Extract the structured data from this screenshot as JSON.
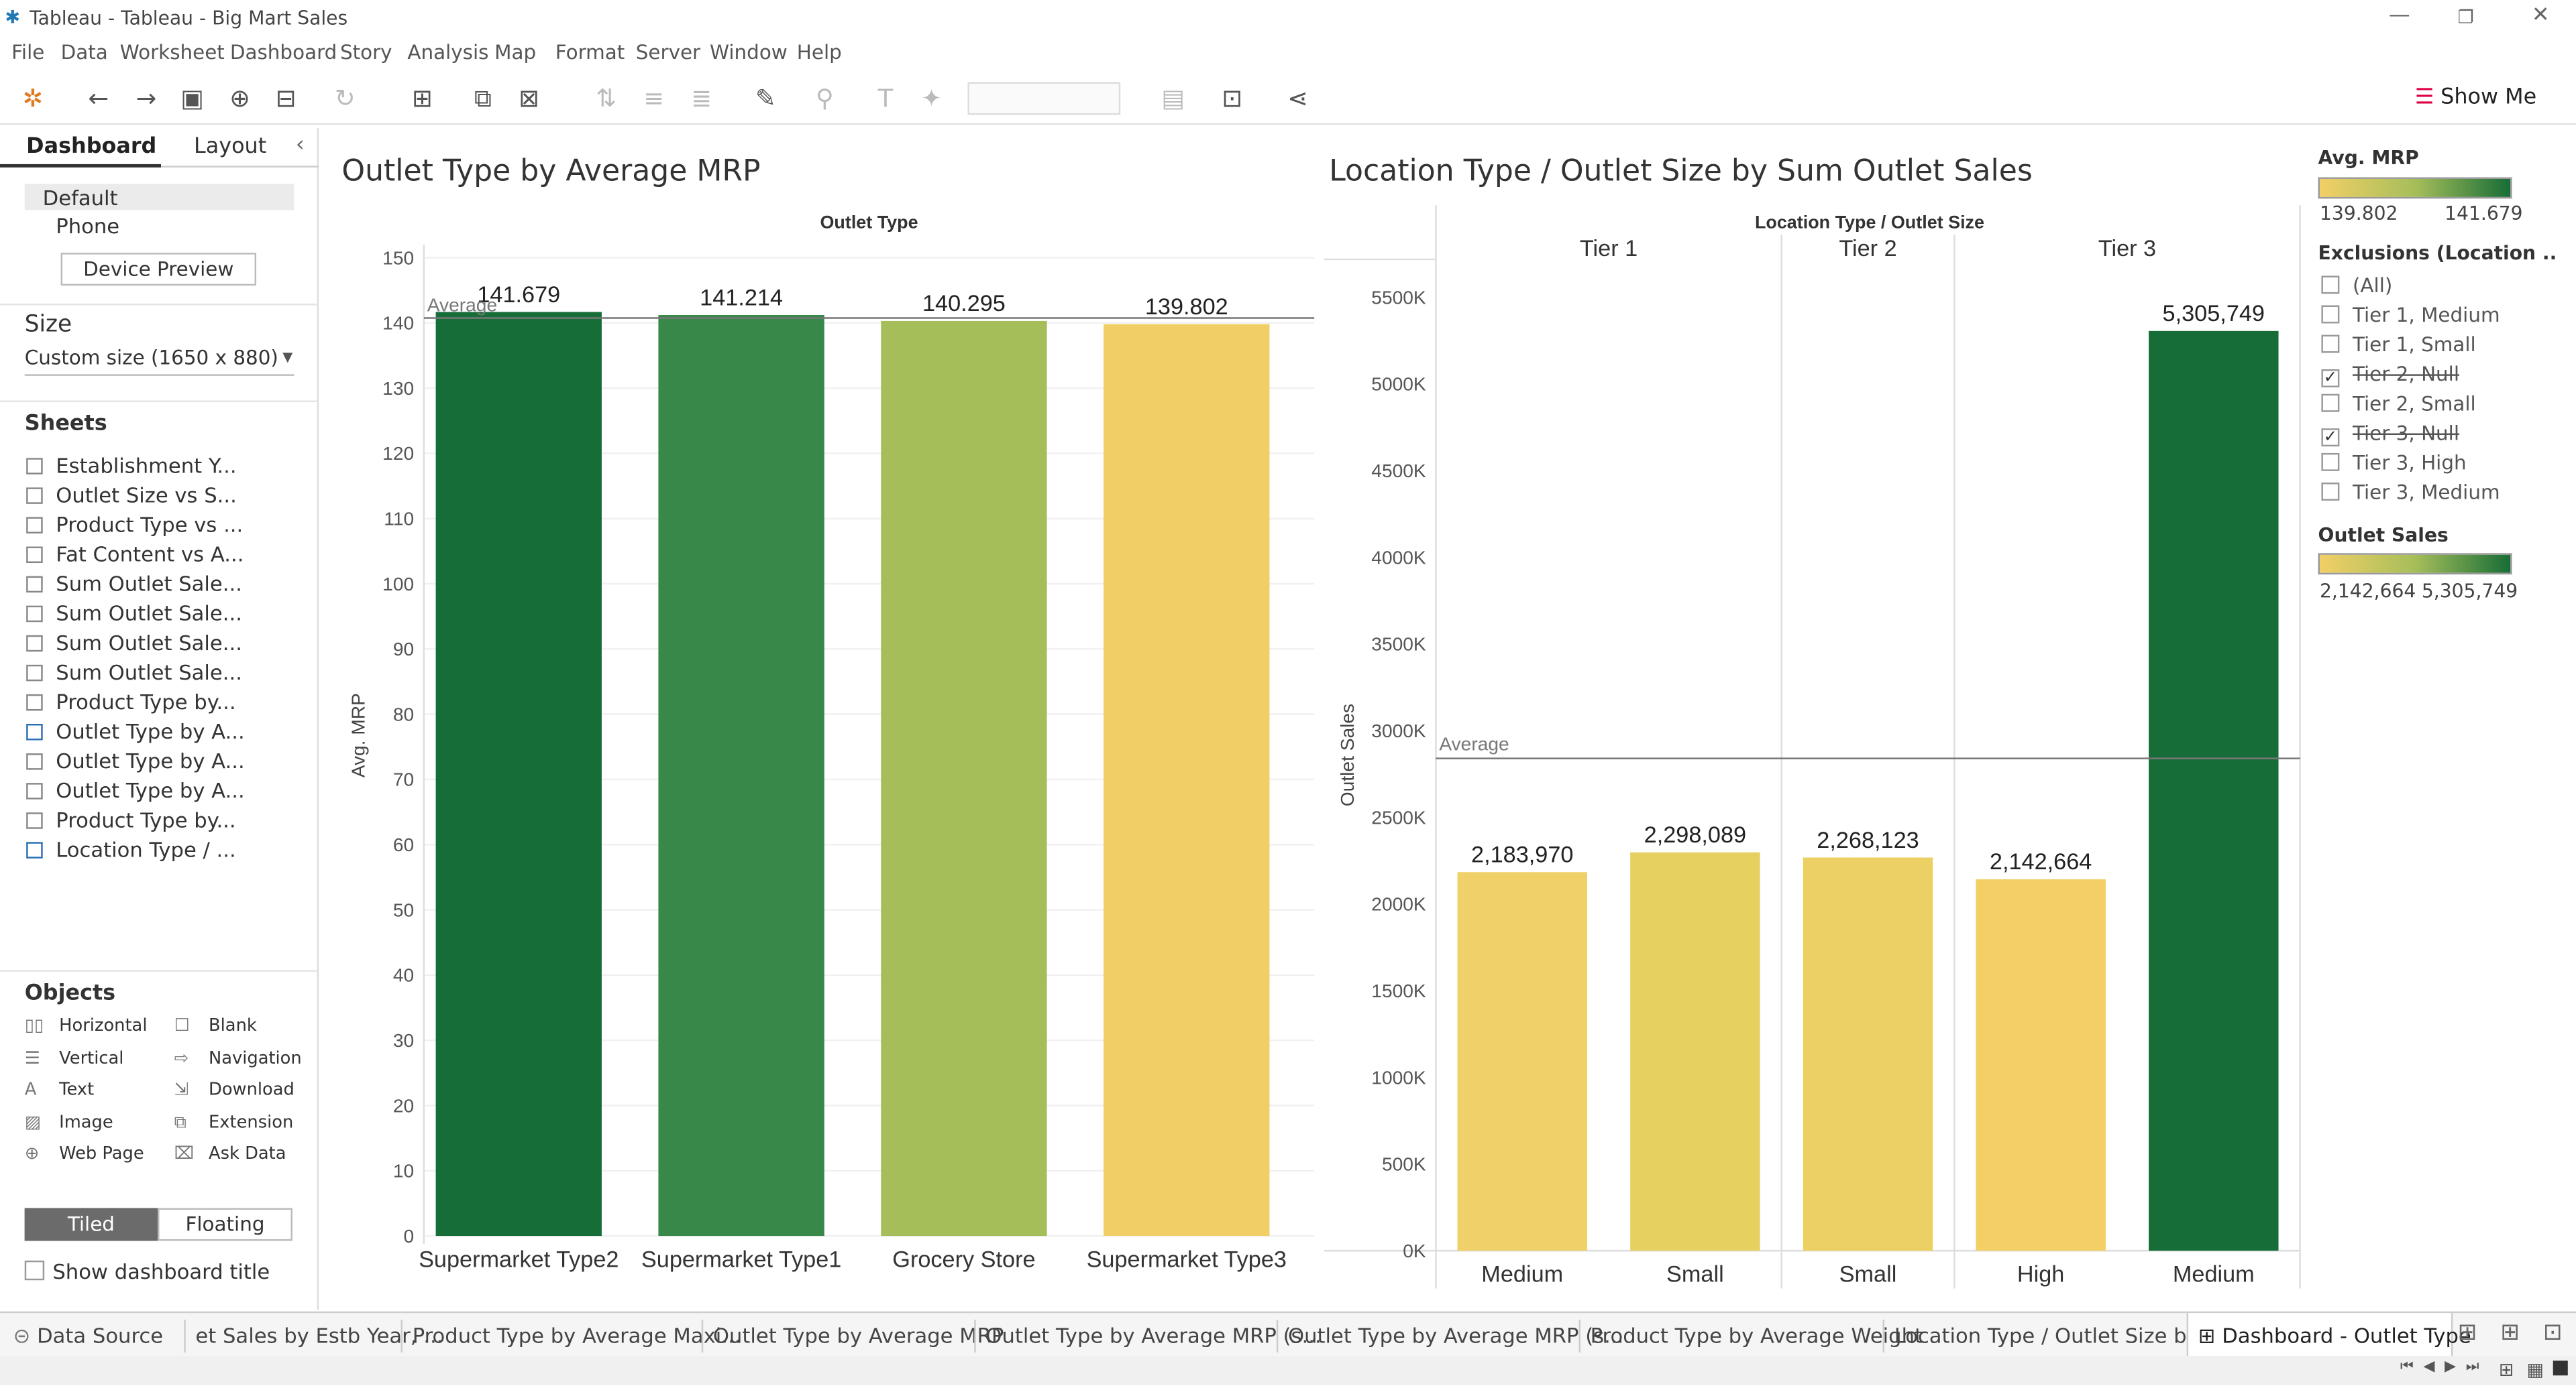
{
  "window": {
    "title": "Tableau - Tableau - Big Mart Sales"
  },
  "menu": [
    "File",
    "Data",
    "Worksheet",
    "Dashboard",
    "Story",
    "Analysis",
    "Map",
    "Format",
    "Server",
    "Window",
    "Help"
  ],
  "toolbar": {
    "show_me": "Show Me"
  },
  "left": {
    "tab_dashboard": "Dashboard",
    "tab_layout": "Layout",
    "device_default": "Default",
    "device_phone": "Phone",
    "device_preview": "Device Preview",
    "size_title": "Size",
    "size_value": "Custom size (1650 x 880)",
    "sheets_title": "Sheets",
    "sheets": [
      "Establishment Y...",
      "Outlet Size vs S...",
      "Product Type vs ...",
      "Fat Content vs A...",
      "Sum Outlet Sale...",
      "Sum Outlet Sale...",
      "Sum Outlet Sale...",
      "Sum Outlet Sale...",
      "Product Type by...",
      "Outlet Type by A...",
      "Outlet Type by A...",
      "Outlet Type by A...",
      "Product Type by...",
      "Location Type / ..."
    ],
    "objects_title": "Objects",
    "objects": [
      "Horizontal",
      "Blank",
      "Vertical",
      "Navigation",
      "Text",
      "Download",
      "Image",
      "Extension",
      "Web Page",
      "Ask Data"
    ],
    "tiled": "Tiled",
    "floating": "Floating",
    "show_title": "Show dashboard title"
  },
  "chart_data": [
    {
      "type": "bar",
      "title": "Outlet Type by Average MRP",
      "column_header": "Outlet Type",
      "ylabel": "Avg. MRP",
      "categories": [
        "Supermarket Type2",
        "Supermarket Type1",
        "Grocery Store",
        "Supermarket Type3"
      ],
      "values": [
        141.679,
        141.214,
        140.295,
        139.802
      ],
      "value_labels": [
        "141.679",
        "141.214",
        "140.295",
        "139.802"
      ],
      "colors": [
        "#176d37",
        "#38884a",
        "#a6be5a",
        "#f2cf66"
      ],
      "ylim": [
        0,
        150
      ],
      "yticks": [
        0,
        10,
        20,
        30,
        40,
        50,
        60,
        70,
        80,
        90,
        100,
        110,
        120,
        130,
        140,
        150
      ],
      "reference_line": {
        "label": "Average",
        "value": 140.75
      }
    },
    {
      "type": "bar",
      "title": "Location Type / Outlet Size by Sum Outlet Sales",
      "column_header": "Location Type  /  Outlet Size",
      "ylabel": "Outlet Sales",
      "groups": [
        "Tier 1",
        "Tier 2",
        "Tier 3"
      ],
      "categories": [
        "Medium",
        "Small",
        "Small",
        "High",
        "Medium"
      ],
      "group_of_category": [
        "Tier 1",
        "Tier 1",
        "Tier 2",
        "Tier 3",
        "Tier 3"
      ],
      "values": [
        2183970,
        2298089,
        2268123,
        2142664,
        5305749
      ],
      "value_labels": [
        "2,183,970",
        "2,298,089",
        "2,268,123",
        "2,142,664",
        "5,305,749"
      ],
      "colors": [
        "#f0d069",
        "#e6d060",
        "#edd064",
        "#f3cf66",
        "#176d37"
      ],
      "ylim": [
        0,
        5700000
      ],
      "yticks": [
        "0K",
        "500K",
        "1000K",
        "1500K",
        "2000K",
        "2500K",
        "3000K",
        "3500K",
        "4000K",
        "4500K",
        "5000K",
        "5500K"
      ],
      "reference_line": {
        "label": "Average",
        "value": 2839719
      }
    }
  ],
  "legend": {
    "mrp_title": "Avg. MRP",
    "mrp_min": "139.802",
    "mrp_max": "141.679",
    "excl_title": "Exclusions (Location ..",
    "exclusions": [
      {
        "label": "(All)",
        "checked": false
      },
      {
        "label": "Tier 1, Medium",
        "checked": false
      },
      {
        "label": "Tier 1, Small",
        "checked": false
      },
      {
        "label": "Tier 2, Null",
        "checked": true
      },
      {
        "label": "Tier 2, Small",
        "checked": false
      },
      {
        "label": "Tier 3, Null",
        "checked": true
      },
      {
        "label": "Tier 3, High",
        "checked": false
      },
      {
        "label": "Tier 3, Medium",
        "checked": false
      }
    ],
    "sales_title": "Outlet Sales",
    "sales_min": "2,142,664",
    "sales_max": "5,305,749"
  },
  "bottom_tabs": [
    "Data Source",
    "et Sales by Estb Year, ...",
    "Product Type by Average Maxi...",
    "Outlet Type by Average MRP",
    "Outlet Type by Average MRP (s...",
    "Outlet Type by Average MRP (s...",
    "Product Type by Average Weight",
    "Location Type / Outlet Size by ...",
    "Dashboard - Outlet Type"
  ]
}
